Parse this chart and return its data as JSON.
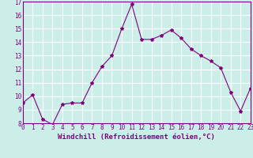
{
  "x": [
    0,
    1,
    2,
    3,
    4,
    5,
    6,
    7,
    8,
    9,
    10,
    11,
    12,
    13,
    14,
    15,
    16,
    17,
    18,
    19,
    20,
    21,
    22,
    23
  ],
  "y": [
    9.5,
    10.1,
    8.3,
    7.9,
    9.4,
    9.5,
    9.5,
    11.0,
    12.2,
    13.0,
    15.0,
    16.8,
    14.2,
    14.2,
    14.5,
    14.9,
    14.3,
    13.5,
    13.0,
    12.6,
    12.1,
    10.3,
    8.9,
    10.6
  ],
  "line_color": "#800080",
  "marker": "*",
  "marker_size": 3,
  "bg_color": "#cceee8",
  "grid_color": "#ffffff",
  "xlabel": "Windchill (Refroidissement éolien,°C)",
  "ylim": [
    8,
    17
  ],
  "xlim": [
    0,
    23
  ],
  "yticks": [
    8,
    9,
    10,
    11,
    12,
    13,
    14,
    15,
    16,
    17
  ],
  "xticks": [
    0,
    1,
    2,
    3,
    4,
    5,
    6,
    7,
    8,
    9,
    10,
    11,
    12,
    13,
    14,
    15,
    16,
    17,
    18,
    19,
    20,
    21,
    22,
    23
  ],
  "xlabel_fontsize": 6.5,
  "tick_fontsize": 5.5,
  "axis_color": "#800080",
  "linewidth": 0.8
}
